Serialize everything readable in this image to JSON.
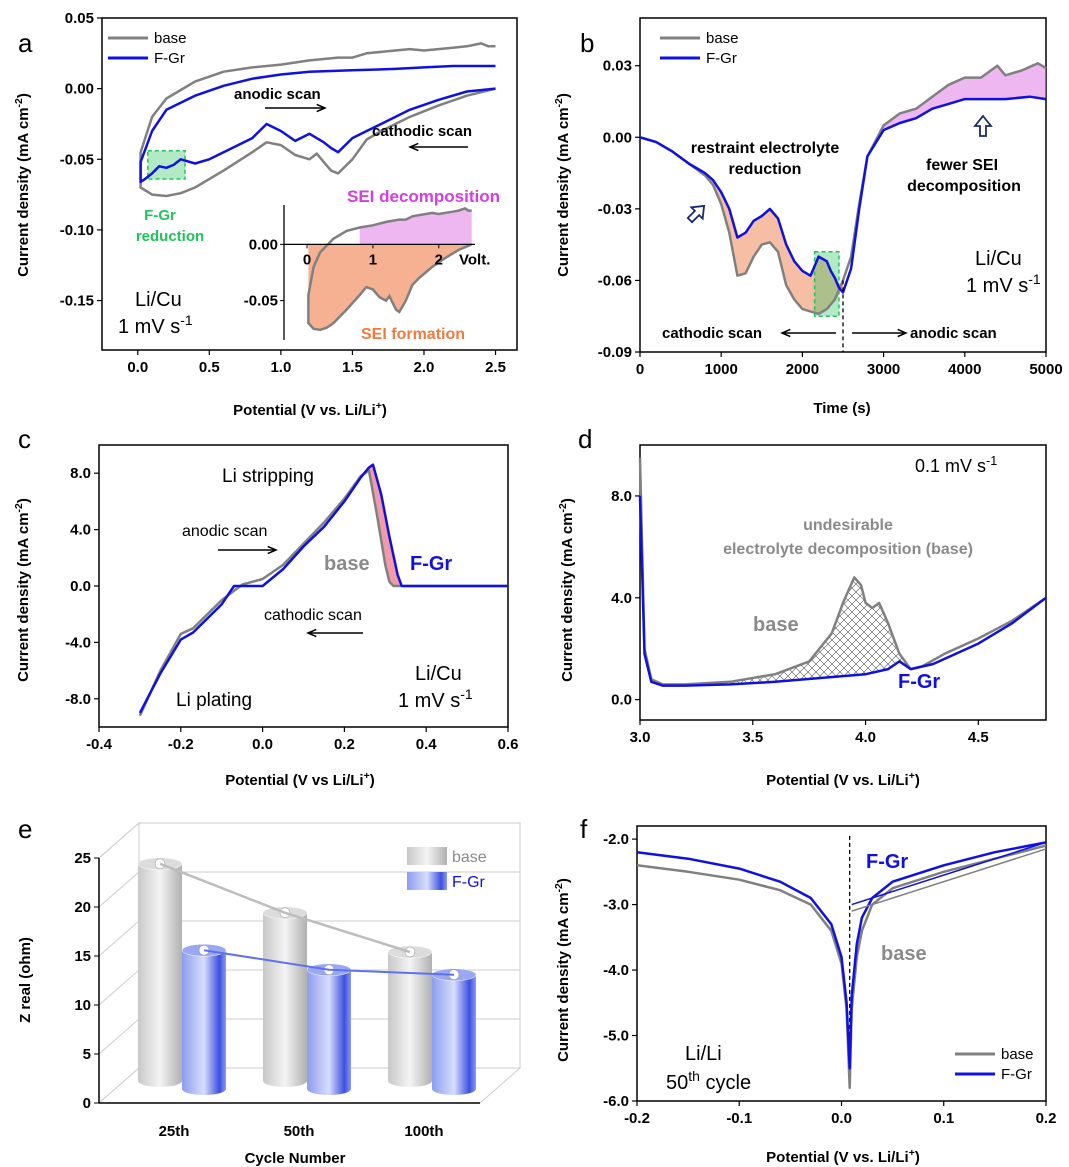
{
  "colors": {
    "base": "#808080",
    "fgr": "#1010e0",
    "green": "#21c45a",
    "sei_dec": "#e07ce6",
    "sei_form": "#f4a380",
    "pink": "#f08fa0"
  },
  "chart_data": [
    {
      "panel": "a",
      "type": "line",
      "xlabel": "Potential (V vs. Li/Li+)",
      "ylabel": "Current density (mA cm-2)",
      "xlim": [
        -0.25,
        2.65
      ],
      "ylim": [
        -0.185,
        0.05
      ],
      "xticks": [
        "0.0",
        "0.5",
        "1.0",
        "1.5",
        "2.0",
        "2.5"
      ],
      "yticks": [
        "0.05",
        "0.00",
        "-0.05",
        "-0.10",
        "-0.15"
      ],
      "legend": [
        "base",
        "F-Gr"
      ],
      "annotations": [
        "anodic scan",
        "cathodic scan",
        "F-Gr",
        "reduction",
        "Li/Cu",
        "1 mV s-1"
      ],
      "series": [
        {
          "name": "base",
          "x": [
            2.5,
            2.3,
            2.1,
            1.9,
            1.8,
            1.7,
            1.6,
            1.5,
            1.45,
            1.4,
            1.35,
            1.3,
            1.25,
            1.2,
            1.1,
            1.0,
            0.9,
            0.8,
            0.6,
            0.4,
            0.3,
            0.2,
            0.1,
            0.02,
            0.02,
            0.1,
            0.2,
            0.4,
            0.6,
            0.8,
            1.0,
            1.2,
            1.4,
            1.5,
            1.6,
            1.8,
            1.9,
            2.0,
            2.2,
            2.3,
            2.4,
            2.45,
            2.5
          ],
          "y": [
            0,
            -0.005,
            -0.012,
            -0.02,
            -0.025,
            -0.03,
            -0.036,
            -0.05,
            -0.055,
            -0.06,
            -0.058,
            -0.052,
            -0.046,
            -0.05,
            -0.047,
            -0.04,
            -0.038,
            -0.045,
            -0.058,
            -0.07,
            -0.074,
            -0.076,
            -0.075,
            -0.07,
            -0.045,
            -0.02,
            -0.007,
            0.005,
            0.012,
            0.015,
            0.017,
            0.02,
            0.022,
            0.022,
            0.025,
            0.027,
            0.028,
            0.027,
            0.029,
            0.03,
            0.032,
            0.03,
            0.03
          ]
        },
        {
          "name": "F-Gr",
          "x": [
            2.5,
            2.3,
            2.1,
            1.9,
            1.8,
            1.7,
            1.6,
            1.5,
            1.45,
            1.4,
            1.35,
            1.3,
            1.2,
            1.1,
            1.0,
            0.9,
            0.8,
            0.6,
            0.5,
            0.4,
            0.3,
            0.25,
            0.2,
            0.15,
            0.1,
            0.05,
            0.02,
            0.02,
            0.1,
            0.2,
            0.4,
            0.6,
            0.8,
            1.0,
            1.2,
            1.5,
            1.8,
            2.0,
            2.2,
            2.5
          ],
          "y": [
            0,
            -0.002,
            -0.008,
            -0.015,
            -0.02,
            -0.025,
            -0.03,
            -0.035,
            -0.04,
            -0.045,
            -0.042,
            -0.038,
            -0.032,
            -0.037,
            -0.03,
            -0.025,
            -0.035,
            -0.045,
            -0.05,
            -0.053,
            -0.05,
            -0.054,
            -0.056,
            -0.055,
            -0.06,
            -0.064,
            -0.066,
            -0.052,
            -0.03,
            -0.015,
            -0.005,
            0.002,
            0.007,
            0.01,
            0.012,
            0.013,
            0.014,
            0.015,
            0.016,
            0.016
          ]
        }
      ],
      "inset": {
        "xticks": [
          "0",
          "1",
          "2"
        ],
        "xunit": "Volt.",
        "yticks": [
          "0.00",
          "-0.05"
        ],
        "labels": [
          "SEI decomposition",
          "SEI formation"
        ]
      }
    },
    {
      "panel": "b",
      "type": "line",
      "xlabel": "Time (s)",
      "ylabel": "Current density (mA cm-2)",
      "xlim": [
        0,
        5000
      ],
      "ylim": [
        -0.09,
        0.05
      ],
      "xticks": [
        "0",
        "1000",
        "2000",
        "3000",
        "4000",
        "5000"
      ],
      "yticks": [
        "0.03",
        "0.00",
        "-0.03",
        "-0.06",
        "-0.09"
      ],
      "legend": [
        "base",
        "F-Gr"
      ],
      "annotations": [
        "restraint electrolyte",
        "reduction",
        "fewer SEI",
        "decomposition",
        "Li/Cu",
        "1 mV s-1",
        "cathodic scan",
        "anodic scan"
      ],
      "series": [
        {
          "name": "base",
          "x": [
            0,
            200,
            400,
            600,
            800,
            900,
            1000,
            1100,
            1200,
            1300,
            1400,
            1500,
            1600,
            1700,
            1800,
            1900,
            2000,
            2100,
            2200,
            2300,
            2400,
            2500,
            2600,
            2700,
            2800,
            3000,
            3200,
            3400,
            3600,
            3800,
            4000,
            4200,
            4400,
            4500,
            4700,
            4900,
            5000
          ],
          "y": [
            0,
            -0.002,
            -0.006,
            -0.011,
            -0.016,
            -0.02,
            -0.028,
            -0.04,
            -0.058,
            -0.057,
            -0.05,
            -0.045,
            -0.044,
            -0.048,
            -0.062,
            -0.068,
            -0.072,
            -0.073,
            -0.074,
            -0.072,
            -0.068,
            -0.06,
            -0.05,
            -0.028,
            -0.008,
            0.005,
            0.01,
            0.012,
            0.017,
            0.022,
            0.025,
            0.025,
            0.03,
            0.026,
            0.028,
            0.031,
            0.029
          ]
        },
        {
          "name": "F-Gr",
          "x": [
            0,
            200,
            400,
            600,
            800,
            900,
            1000,
            1100,
            1200,
            1300,
            1400,
            1500,
            1600,
            1700,
            1800,
            1900,
            2000,
            2100,
            2200,
            2300,
            2350,
            2400,
            2450,
            2500,
            2550,
            2600,
            2700,
            2800,
            3000,
            3200,
            3400,
            3600,
            3800,
            4000,
            4200,
            4500,
            4800,
            5000
          ],
          "y": [
            0,
            -0.002,
            -0.006,
            -0.011,
            -0.015,
            -0.018,
            -0.023,
            -0.03,
            -0.042,
            -0.04,
            -0.035,
            -0.033,
            -0.03,
            -0.034,
            -0.045,
            -0.052,
            -0.056,
            -0.058,
            -0.05,
            -0.052,
            -0.056,
            -0.059,
            -0.063,
            -0.065,
            -0.06,
            -0.055,
            -0.03,
            -0.008,
            0.003,
            0.006,
            0.008,
            0.012,
            0.014,
            0.016,
            0.016,
            0.016,
            0.017,
            0.016
          ]
        }
      ]
    },
    {
      "panel": "c",
      "type": "line",
      "xlabel": "Potential (V vs Li/Li+)",
      "ylabel": "Current density (mA cm-2)",
      "xlim": [
        -0.4,
        0.6
      ],
      "ylim": [
        -10,
        10
      ],
      "xticks": [
        "-0.4",
        "-0.2",
        "0.0",
        "0.2",
        "0.4",
        "0.6"
      ],
      "yticks": [
        "8.0",
        "4.0",
        "0.0",
        "-4.0",
        "-8.0"
      ],
      "annotations": [
        "Li stripping",
        "anodic scan",
        "base",
        "F-Gr",
        "cathodic scan",
        "Li/Cu",
        "1 mV s-1",
        "Li plating"
      ],
      "series": [
        {
          "name": "base",
          "x": [
            -0.3,
            -0.25,
            -0.2,
            -0.17,
            -0.1,
            -0.05,
            0.0,
            0.05,
            0.1,
            0.15,
            0.2,
            0.24,
            0.26,
            0.28,
            0.3,
            0.31,
            0.32,
            0.6
          ],
          "y": [
            -9.2,
            -6,
            -3.4,
            -3.0,
            -1.0,
            0.1,
            0.5,
            1.5,
            3.0,
            4.5,
            6.2,
            7.8,
            8.2,
            5,
            1.5,
            0.3,
            0,
            0
          ]
        },
        {
          "name": "F-Gr",
          "x": [
            -0.3,
            -0.25,
            -0.2,
            -0.17,
            -0.1,
            -0.07,
            0.0,
            0.05,
            0.1,
            0.15,
            0.2,
            0.24,
            0.26,
            0.27,
            0.29,
            0.31,
            0.33,
            0.34,
            0.6
          ],
          "y": [
            -9.0,
            -6.2,
            -3.8,
            -3.3,
            -1.3,
            0,
            0,
            1.2,
            2.8,
            4.2,
            6.0,
            7.7,
            8.4,
            8.6,
            6.5,
            3.5,
            0.8,
            0,
            0
          ]
        }
      ]
    },
    {
      "panel": "d",
      "type": "line",
      "xlabel": "Potential (V vs. Li/Li+)",
      "ylabel": "Current density",
      "xlim": [
        3.0,
        4.8
      ],
      "ylim": [
        -0.8,
        10
      ],
      "xticks": [
        "3.0",
        "3.5",
        "4.0",
        "4.5"
      ],
      "yticks": [
        "8.0",
        "4.0",
        "0.0"
      ],
      "annotations": [
        "0.1 mV s-1",
        "undesirable",
        "electrolyte decomposition (base)",
        "base",
        "F-Gr"
      ],
      "series": [
        {
          "name": "base",
          "x": [
            3.0,
            3.02,
            3.05,
            3.1,
            3.2,
            3.4,
            3.6,
            3.75,
            3.85,
            3.9,
            3.95,
            3.98,
            4.0,
            4.03,
            4.06,
            4.1,
            4.15,
            4.2,
            4.25,
            4.35,
            4.5,
            4.65,
            4.8
          ],
          "y": [
            9.5,
            2.0,
            0.8,
            0.6,
            0.6,
            0.7,
            1.0,
            1.5,
            2.6,
            3.8,
            4.8,
            4.5,
            3.8,
            3.6,
            3.8,
            3.0,
            1.8,
            1.2,
            1.3,
            1.8,
            2.4,
            3.1,
            4.0
          ]
        },
        {
          "name": "F-Gr",
          "x": [
            3.0,
            3.02,
            3.05,
            3.1,
            3.2,
            3.4,
            3.6,
            3.8,
            4.0,
            4.1,
            4.15,
            4.2,
            4.3,
            4.5,
            4.65,
            4.8
          ],
          "y": [
            8.0,
            1.8,
            0.7,
            0.55,
            0.55,
            0.6,
            0.7,
            0.85,
            1.0,
            1.2,
            1.5,
            1.2,
            1.4,
            2.2,
            3.0,
            4.0
          ]
        }
      ]
    },
    {
      "panel": "e",
      "type": "bar",
      "xlabel": "Cycle Number",
      "ylabel": "Z real (ohm)",
      "ylim": [
        0,
        25
      ],
      "yticks": [
        "0",
        "5",
        "10",
        "15",
        "20",
        "25"
      ],
      "categories": [
        "25th",
        "50th",
        "100th"
      ],
      "series": [
        {
          "name": "base",
          "values": [
            24.0,
            19.0,
            15.0
          ]
        },
        {
          "name": "F-Gr",
          "values": [
            16.0,
            14.0,
            13.5
          ]
        }
      ]
    },
    {
      "panel": "f",
      "type": "line",
      "xlabel": "Potential (V vs. Li/Li+)",
      "ylabel": "Current density (mA cm-2)",
      "xlim": [
        -0.2,
        0.2
      ],
      "ylim": [
        -6,
        -1.8
      ],
      "xticks": [
        "-0.2",
        "-0.1",
        "0.0",
        "0.1",
        "0.2"
      ],
      "yticks": [
        "-2.0",
        "-3.0",
        "-4.0",
        "-5.0",
        "-6.0"
      ],
      "legend": [
        "base",
        "F-Gr"
      ],
      "annotations": [
        "F-Gr",
        "base",
        "Li/Li",
        "50th cycle"
      ],
      "series": [
        {
          "name": "base",
          "x": [
            -0.2,
            -0.15,
            -0.1,
            -0.06,
            -0.03,
            -0.01,
            0.0,
            0.005,
            0.008,
            0.01,
            0.015,
            0.02,
            0.03,
            0.05,
            0.1,
            0.15,
            0.2
          ],
          "y": [
            -2.4,
            -2.5,
            -2.62,
            -2.78,
            -3.0,
            -3.4,
            -3.9,
            -4.6,
            -5.8,
            -4.6,
            -3.8,
            -3.4,
            -3.0,
            -2.75,
            -2.5,
            -2.3,
            -2.1
          ]
        },
        {
          "name": "F-Gr",
          "x": [
            -0.2,
            -0.15,
            -0.1,
            -0.06,
            -0.03,
            -0.01,
            0.0,
            0.005,
            0.008,
            0.01,
            0.015,
            0.02,
            0.03,
            0.05,
            0.1,
            0.15,
            0.2
          ],
          "y": [
            -2.2,
            -2.3,
            -2.45,
            -2.65,
            -2.9,
            -3.3,
            -3.8,
            -4.5,
            -5.5,
            -4.4,
            -3.6,
            -3.2,
            -2.9,
            -2.65,
            -2.4,
            -2.2,
            -2.05
          ]
        }
      ]
    }
  ]
}
